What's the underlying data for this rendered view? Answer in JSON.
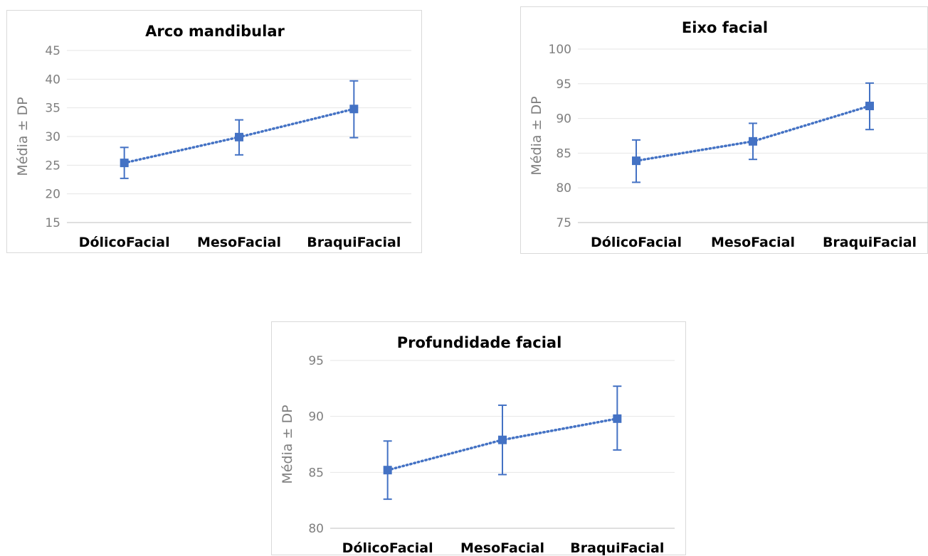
{
  "chart_data": [
    {
      "type": "line",
      "title": "Arco mandibular",
      "ylabel": "Média ± DP",
      "xlabel": "",
      "categories": [
        "DólicoFacial",
        "MesoFacial",
        "BraquiFacial"
      ],
      "ylim": [
        15,
        45
      ],
      "yticks": [
        "15",
        "20",
        "25",
        "30",
        "35",
        "40",
        "45"
      ],
      "ytick_values": [
        15,
        20,
        25,
        30,
        35,
        40,
        45
      ],
      "series": [
        {
          "values": [
            25.4,
            29.9,
            34.8
          ],
          "error_low": [
            22.7,
            26.8,
            29.8
          ],
          "error_high": [
            28.1,
            32.9,
            39.7
          ],
          "trendline": "dotted linear"
        }
      ],
      "grid": true,
      "legend": "none",
      "color": "#4472c4"
    },
    {
      "type": "line",
      "title": "Eixo facial",
      "ylabel": "Média ± DP",
      "xlabel": "",
      "categories": [
        "DólicoFacial",
        "MesoFacial",
        "BraquiFacial"
      ],
      "ylim": [
        75,
        100
      ],
      "yticks": [
        "75",
        "80",
        "85",
        "90",
        "95",
        "100"
      ],
      "ytick_values": [
        75,
        80,
        85,
        90,
        95,
        100
      ],
      "series": [
        {
          "values": [
            83.9,
            86.7,
            91.8
          ],
          "error_low": [
            80.8,
            84.1,
            88.4
          ],
          "error_high": [
            86.9,
            89.3,
            95.1
          ],
          "trendline": "dotted linear"
        }
      ],
      "grid": true,
      "legend": "none",
      "color": "#4472c4"
    },
    {
      "type": "line",
      "title": "Profundidade facial",
      "ylabel": "Média ± DP",
      "xlabel": "",
      "categories": [
        "DólicoFacial",
        "MesoFacial",
        "BraquiFacial"
      ],
      "ylim": [
        80,
        95
      ],
      "yticks": [
        "80",
        "85",
        "90",
        "95"
      ],
      "ytick_values": [
        80,
        85,
        90,
        95
      ],
      "series": [
        {
          "values": [
            85.2,
            87.9,
            89.8
          ],
          "error_low": [
            82.6,
            84.8,
            87.0
          ],
          "error_high": [
            87.8,
            91.0,
            92.7
          ],
          "trendline": "dotted linear"
        }
      ],
      "grid": true,
      "legend": "none",
      "color": "#4472c4"
    }
  ]
}
